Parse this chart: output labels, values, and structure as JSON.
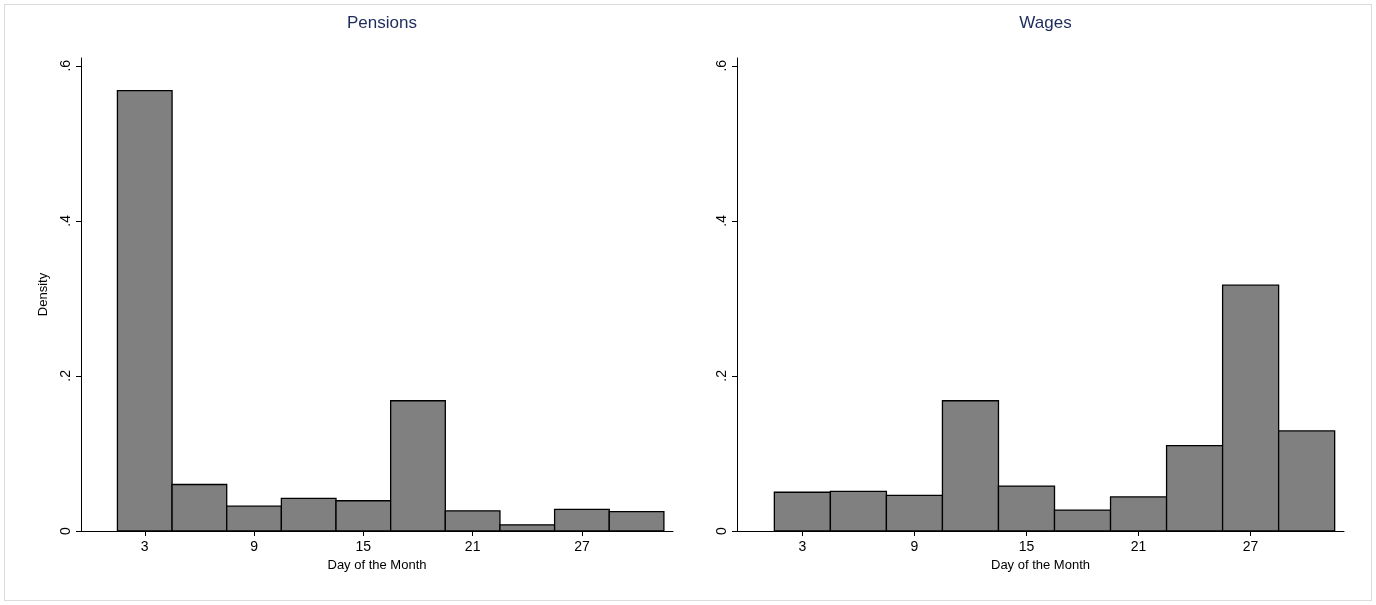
{
  "chart_data": [
    {
      "type": "histogram",
      "title": "Pensions",
      "xlabel": "Day of the Month",
      "ylabel": "Density",
      "bins": [
        1.5,
        4.5,
        7.5,
        10.5,
        13.5,
        16.5,
        19.5,
        22.5,
        25.5,
        28.5,
        31.5
      ],
      "values": [
        0.568,
        0.06,
        0.032,
        0.042,
        0.039,
        0.168,
        0.026,
        0.008,
        0.028,
        0.025
      ],
      "color": "#808080",
      "xlim": [
        -0.5,
        32
      ],
      "ylim": [
        0,
        0.61
      ],
      "xticks": [
        3,
        9,
        15,
        21,
        27
      ],
      "yticks": [
        0,
        {
          "value": 0.2,
          "label": ".2"
        },
        {
          "value": 0.4,
          "label": ".4"
        },
        {
          "value": 0.6,
          "label": ".6"
        }
      ]
    },
    {
      "type": "histogram",
      "title": "Wages",
      "xlabel": "Day of the Month",
      "bins": [
        1.5,
        4.5,
        7.5,
        10.5,
        13.5,
        16.5,
        19.5,
        22.5,
        25.5,
        28.5,
        31.5
      ],
      "values": [
        0.05,
        0.051,
        0.046,
        0.168,
        0.058,
        0.027,
        0.044,
        0.11,
        0.317,
        0.129
      ],
      "color": "#808080",
      "xlim": [
        -0.5,
        32
      ],
      "ylim": [
        0,
        0.61
      ],
      "xticks": [
        3,
        9,
        15,
        21,
        27
      ],
      "yticks": [
        0,
        {
          "value": 0.2,
          "label": ".2"
        },
        {
          "value": 0.4,
          "label": ".4"
        },
        {
          "value": 0.6,
          "label": ".6"
        }
      ]
    }
  ]
}
